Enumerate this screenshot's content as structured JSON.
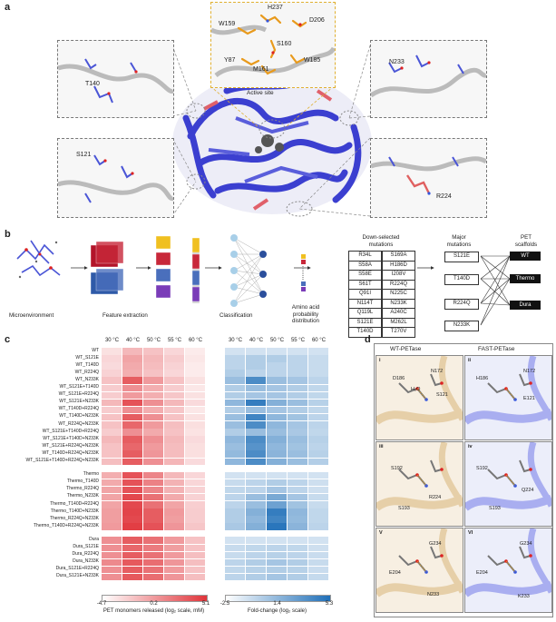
{
  "panel_a": {
    "letter": "a",
    "active_site": {
      "caption": "Active site",
      "residues": [
        "H237",
        "W159",
        "D206",
        "S160",
        "Y87",
        "M161",
        "W185"
      ]
    },
    "insets": [
      {
        "label": "T140"
      },
      {
        "label": "S121"
      },
      {
        "label": "N233"
      },
      {
        "label": "R224"
      }
    ]
  },
  "panel_b": {
    "letter": "b",
    "captions": {
      "microenvironment": "Microenvironment",
      "feature_extraction": "Feature extraction",
      "classification": "Classification",
      "probability": [
        "Amino acid",
        "probability",
        "distribution"
      ]
    },
    "downselected_title": [
      "Down-selected",
      "mutations"
    ],
    "downselected": [
      [
        "R34L",
        "S169A"
      ],
      [
        "S58A",
        "H186D"
      ],
      [
        "S58E",
        "I208V"
      ],
      [
        "S61T",
        "R224Q"
      ],
      [
        "Q91I",
        "N225C"
      ],
      [
        "N114T",
        "N233K"
      ],
      [
        "Q119L",
        "A240C"
      ],
      [
        "S121E",
        "M262L"
      ],
      [
        "T140D",
        "T270V"
      ]
    ],
    "major_title": [
      "Major",
      "mutations"
    ],
    "major": [
      "S121E",
      "T140D",
      "R224Q",
      "N233K"
    ],
    "scaffold_title": [
      "PET",
      "scaffolds"
    ],
    "scaffolds": [
      "WT",
      "Thermo",
      "Dura"
    ]
  },
  "panel_c": {
    "letter": "c",
    "temps": [
      "30 °C",
      "40 °C",
      "50 °C",
      "55 °C",
      "60 °C"
    ],
    "groups": [
      {
        "rows": [
          "WT",
          "WT_S121E",
          "WT_T140D",
          "WT_R224Q",
          "WT_N233K",
          "WT_S121E+T140D",
          "WT_S121E+R224Q",
          "WT_S121E+N233K",
          "WT_T140D+R224Q",
          "WT_T140D+N233K",
          "WT_R224Q+N233K",
          "WT_S121E+T140D+R224Q",
          "WT_S121E+T140D+N233K",
          "WT_S121E+R224Q+N233K",
          "WT_T140D+R224Q+N233K",
          "WT_S121E+T140D+R224Q+N233K"
        ]
      },
      {
        "rows": [
          "Thermo",
          "Thermo_T140D",
          "Thermo_R224Q",
          "Thermo_N233K",
          "Thermo_T140D+R224Q",
          "Thermo_T140D+N233K",
          "Thermo_R224Q+N233K",
          "Thermo_T140D+R224Q+N233K"
        ]
      },
      {
        "rows": [
          "Dura",
          "Dura_S121E",
          "Dura_R224Q",
          "Dura_N233K",
          "Dura_S121E+R224Q",
          "Dura_S121E+N233K"
        ]
      }
    ],
    "left_scale": {
      "ticks": [
        "-4.7",
        "0.2",
        "5.1"
      ],
      "caption": "PET monomers released (log₂ scale, mM)",
      "low": "#ffffff",
      "high": "#e0343a"
    },
    "right_scale": {
      "ticks": [
        "-2.5",
        "1.4",
        "5.3"
      ],
      "caption": "Fold-change (log₂ scale)",
      "low": "#ffffff",
      "high": "#1f6fb8"
    },
    "left_values": [
      [
        0.15,
        0.35,
        0.3,
        0.2,
        0.1
      ],
      [
        0.2,
        0.45,
        0.35,
        0.25,
        0.12
      ],
      [
        0.18,
        0.42,
        0.33,
        0.22,
        0.1
      ],
      [
        0.22,
        0.4,
        0.3,
        0.2,
        0.1
      ],
      [
        0.3,
        0.8,
        0.5,
        0.3,
        0.15
      ],
      [
        0.25,
        0.55,
        0.4,
        0.25,
        0.12
      ],
      [
        0.25,
        0.5,
        0.4,
        0.28,
        0.15
      ],
      [
        0.35,
        0.85,
        0.55,
        0.35,
        0.18
      ],
      [
        0.25,
        0.55,
        0.4,
        0.28,
        0.12
      ],
      [
        0.3,
        0.8,
        0.55,
        0.3,
        0.15
      ],
      [
        0.3,
        0.75,
        0.5,
        0.32,
        0.16
      ],
      [
        0.25,
        0.55,
        0.42,
        0.3,
        0.14
      ],
      [
        0.35,
        0.8,
        0.55,
        0.35,
        0.18
      ],
      [
        0.3,
        0.75,
        0.5,
        0.33,
        0.16
      ],
      [
        0.3,
        0.8,
        0.52,
        0.33,
        0.16
      ],
      [
        0.32,
        0.8,
        0.55,
        0.36,
        0.18
      ],
      [
        0.4,
        0.85,
        0.6,
        0.35,
        0.2
      ],
      [
        0.42,
        0.85,
        0.62,
        0.38,
        0.2
      ],
      [
        0.45,
        0.85,
        0.6,
        0.38,
        0.22
      ],
      [
        0.45,
        0.9,
        0.7,
        0.42,
        0.22
      ],
      [
        0.45,
        0.9,
        0.7,
        0.45,
        0.24
      ],
      [
        0.48,
        0.92,
        0.8,
        0.5,
        0.25
      ],
      [
        0.48,
        0.9,
        0.8,
        0.48,
        0.25
      ],
      [
        0.5,
        0.95,
        0.85,
        0.52,
        0.28
      ],
      [
        0.55,
        0.8,
        0.7,
        0.5,
        0.3
      ],
      [
        0.55,
        0.75,
        0.65,
        0.48,
        0.3
      ],
      [
        0.55,
        0.8,
        0.7,
        0.5,
        0.32
      ],
      [
        0.58,
        0.82,
        0.72,
        0.52,
        0.32
      ],
      [
        0.55,
        0.8,
        0.7,
        0.5,
        0.3
      ],
      [
        0.55,
        0.82,
        0.72,
        0.52,
        0.32
      ]
    ],
    "right_values": [
      [
        0.2,
        0.2,
        0.2,
        0.2,
        0.2
      ],
      [
        0.3,
        0.35,
        0.35,
        0.3,
        0.25
      ],
      [
        0.3,
        0.35,
        0.3,
        0.3,
        0.25
      ],
      [
        0.35,
        0.3,
        0.3,
        0.3,
        0.25
      ],
      [
        0.45,
        0.8,
        0.45,
        0.4,
        0.3
      ],
      [
        0.35,
        0.45,
        0.4,
        0.35,
        0.28
      ],
      [
        0.35,
        0.4,
        0.4,
        0.35,
        0.28
      ],
      [
        0.5,
        0.9,
        0.55,
        0.45,
        0.32
      ],
      [
        0.35,
        0.45,
        0.4,
        0.35,
        0.28
      ],
      [
        0.45,
        0.85,
        0.5,
        0.42,
        0.3
      ],
      [
        0.45,
        0.8,
        0.5,
        0.4,
        0.3
      ],
      [
        0.35,
        0.45,
        0.45,
        0.38,
        0.28
      ],
      [
        0.5,
        0.8,
        0.55,
        0.45,
        0.32
      ],
      [
        0.45,
        0.75,
        0.5,
        0.42,
        0.3
      ],
      [
        0.48,
        0.8,
        0.52,
        0.45,
        0.32
      ],
      [
        0.5,
        0.8,
        0.55,
        0.45,
        0.34
      ],
      [
        0.2,
        0.2,
        0.2,
        0.2,
        0.2
      ],
      [
        0.25,
        0.3,
        0.35,
        0.3,
        0.22
      ],
      [
        0.28,
        0.3,
        0.4,
        0.3,
        0.22
      ],
      [
        0.3,
        0.45,
        0.6,
        0.4,
        0.25
      ],
      [
        0.3,
        0.45,
        0.65,
        0.42,
        0.25
      ],
      [
        0.35,
        0.55,
        0.9,
        0.5,
        0.28
      ],
      [
        0.35,
        0.5,
        0.85,
        0.48,
        0.28
      ],
      [
        0.38,
        0.55,
        0.95,
        0.52,
        0.3
      ],
      [
        0.2,
        0.2,
        0.2,
        0.2,
        0.2
      ],
      [
        0.25,
        0.28,
        0.3,
        0.28,
        0.22
      ],
      [
        0.25,
        0.3,
        0.32,
        0.3,
        0.24
      ],
      [
        0.3,
        0.35,
        0.4,
        0.35,
        0.25
      ],
      [
        0.28,
        0.32,
        0.35,
        0.32,
        0.24
      ],
      [
        0.3,
        0.35,
        0.4,
        0.35,
        0.26
      ]
    ]
  },
  "panel_d": {
    "letter": "d",
    "titles": [
      "WT-PETase",
      "FAST-PETase"
    ],
    "cells": [
      {
        "tag": "i",
        "residues": [
          "D186",
          "N172",
          "H₂O",
          "S121"
        ]
      },
      {
        "tag": "ii",
        "residues": [
          "H186",
          "N172",
          "E121"
        ]
      },
      {
        "tag": "iii",
        "residues": [
          "S192",
          "R224",
          "S193"
        ]
      },
      {
        "tag": "iv",
        "residues": [
          "S192",
          "Q224",
          "S193"
        ]
      },
      {
        "tag": "V",
        "residues": [
          "G234",
          "E204",
          "N233"
        ]
      },
      {
        "tag": "VI",
        "residues": [
          "G234",
          "E204",
          "K233"
        ]
      }
    ]
  }
}
